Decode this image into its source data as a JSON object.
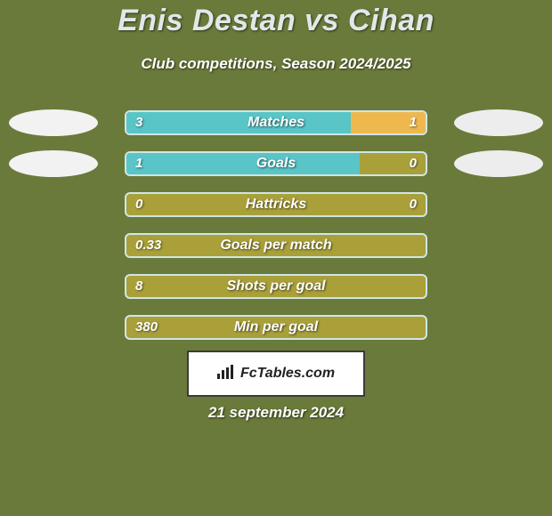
{
  "background_color": "#6a7a3a",
  "title": "Enis Destan vs Cihan",
  "title_color": "#dfe9e9",
  "subtitle": "Club competitions, Season 2024/2025",
  "subtitle_color": "#ffffff",
  "bar": {
    "track_color": "#a9a03a",
    "track_border_color": "#cfe6e6",
    "left_fill_color": "#59c5c7",
    "right_fill_color": "#eeb84e",
    "label_color": "#ffffff",
    "value_color": "#ffffff"
  },
  "avatar": {
    "left_color": "#f2f2f2",
    "right_color": "#ededed"
  },
  "metrics": [
    {
      "label": "Matches",
      "left_value": "3",
      "right_value": "1",
      "left_width_pct": 75,
      "right_width_pct": 25,
      "show_avatars": true
    },
    {
      "label": "Goals",
      "left_value": "1",
      "right_value": "0",
      "left_width_pct": 78,
      "right_width_pct": 0,
      "show_avatars": true
    },
    {
      "label": "Hattricks",
      "left_value": "0",
      "right_value": "0",
      "left_width_pct": 0,
      "right_width_pct": 0,
      "show_avatars": false
    },
    {
      "label": "Goals per match",
      "left_value": "0.33",
      "right_value": "",
      "left_width_pct": 0,
      "right_width_pct": 0,
      "show_avatars": false
    },
    {
      "label": "Shots per goal",
      "left_value": "8",
      "right_value": "",
      "left_width_pct": 0,
      "right_width_pct": 0,
      "show_avatars": false
    },
    {
      "label": "Min per goal",
      "left_value": "380",
      "right_value": "",
      "left_width_pct": 0,
      "right_width_pct": 0,
      "show_avatars": false
    }
  ],
  "badge": {
    "text": "FcTables.com",
    "bg_color": "#ffffff",
    "border_color": "#3a3a3a",
    "text_color": "#222222"
  },
  "date": "21 september 2024",
  "date_color": "#ffffff"
}
